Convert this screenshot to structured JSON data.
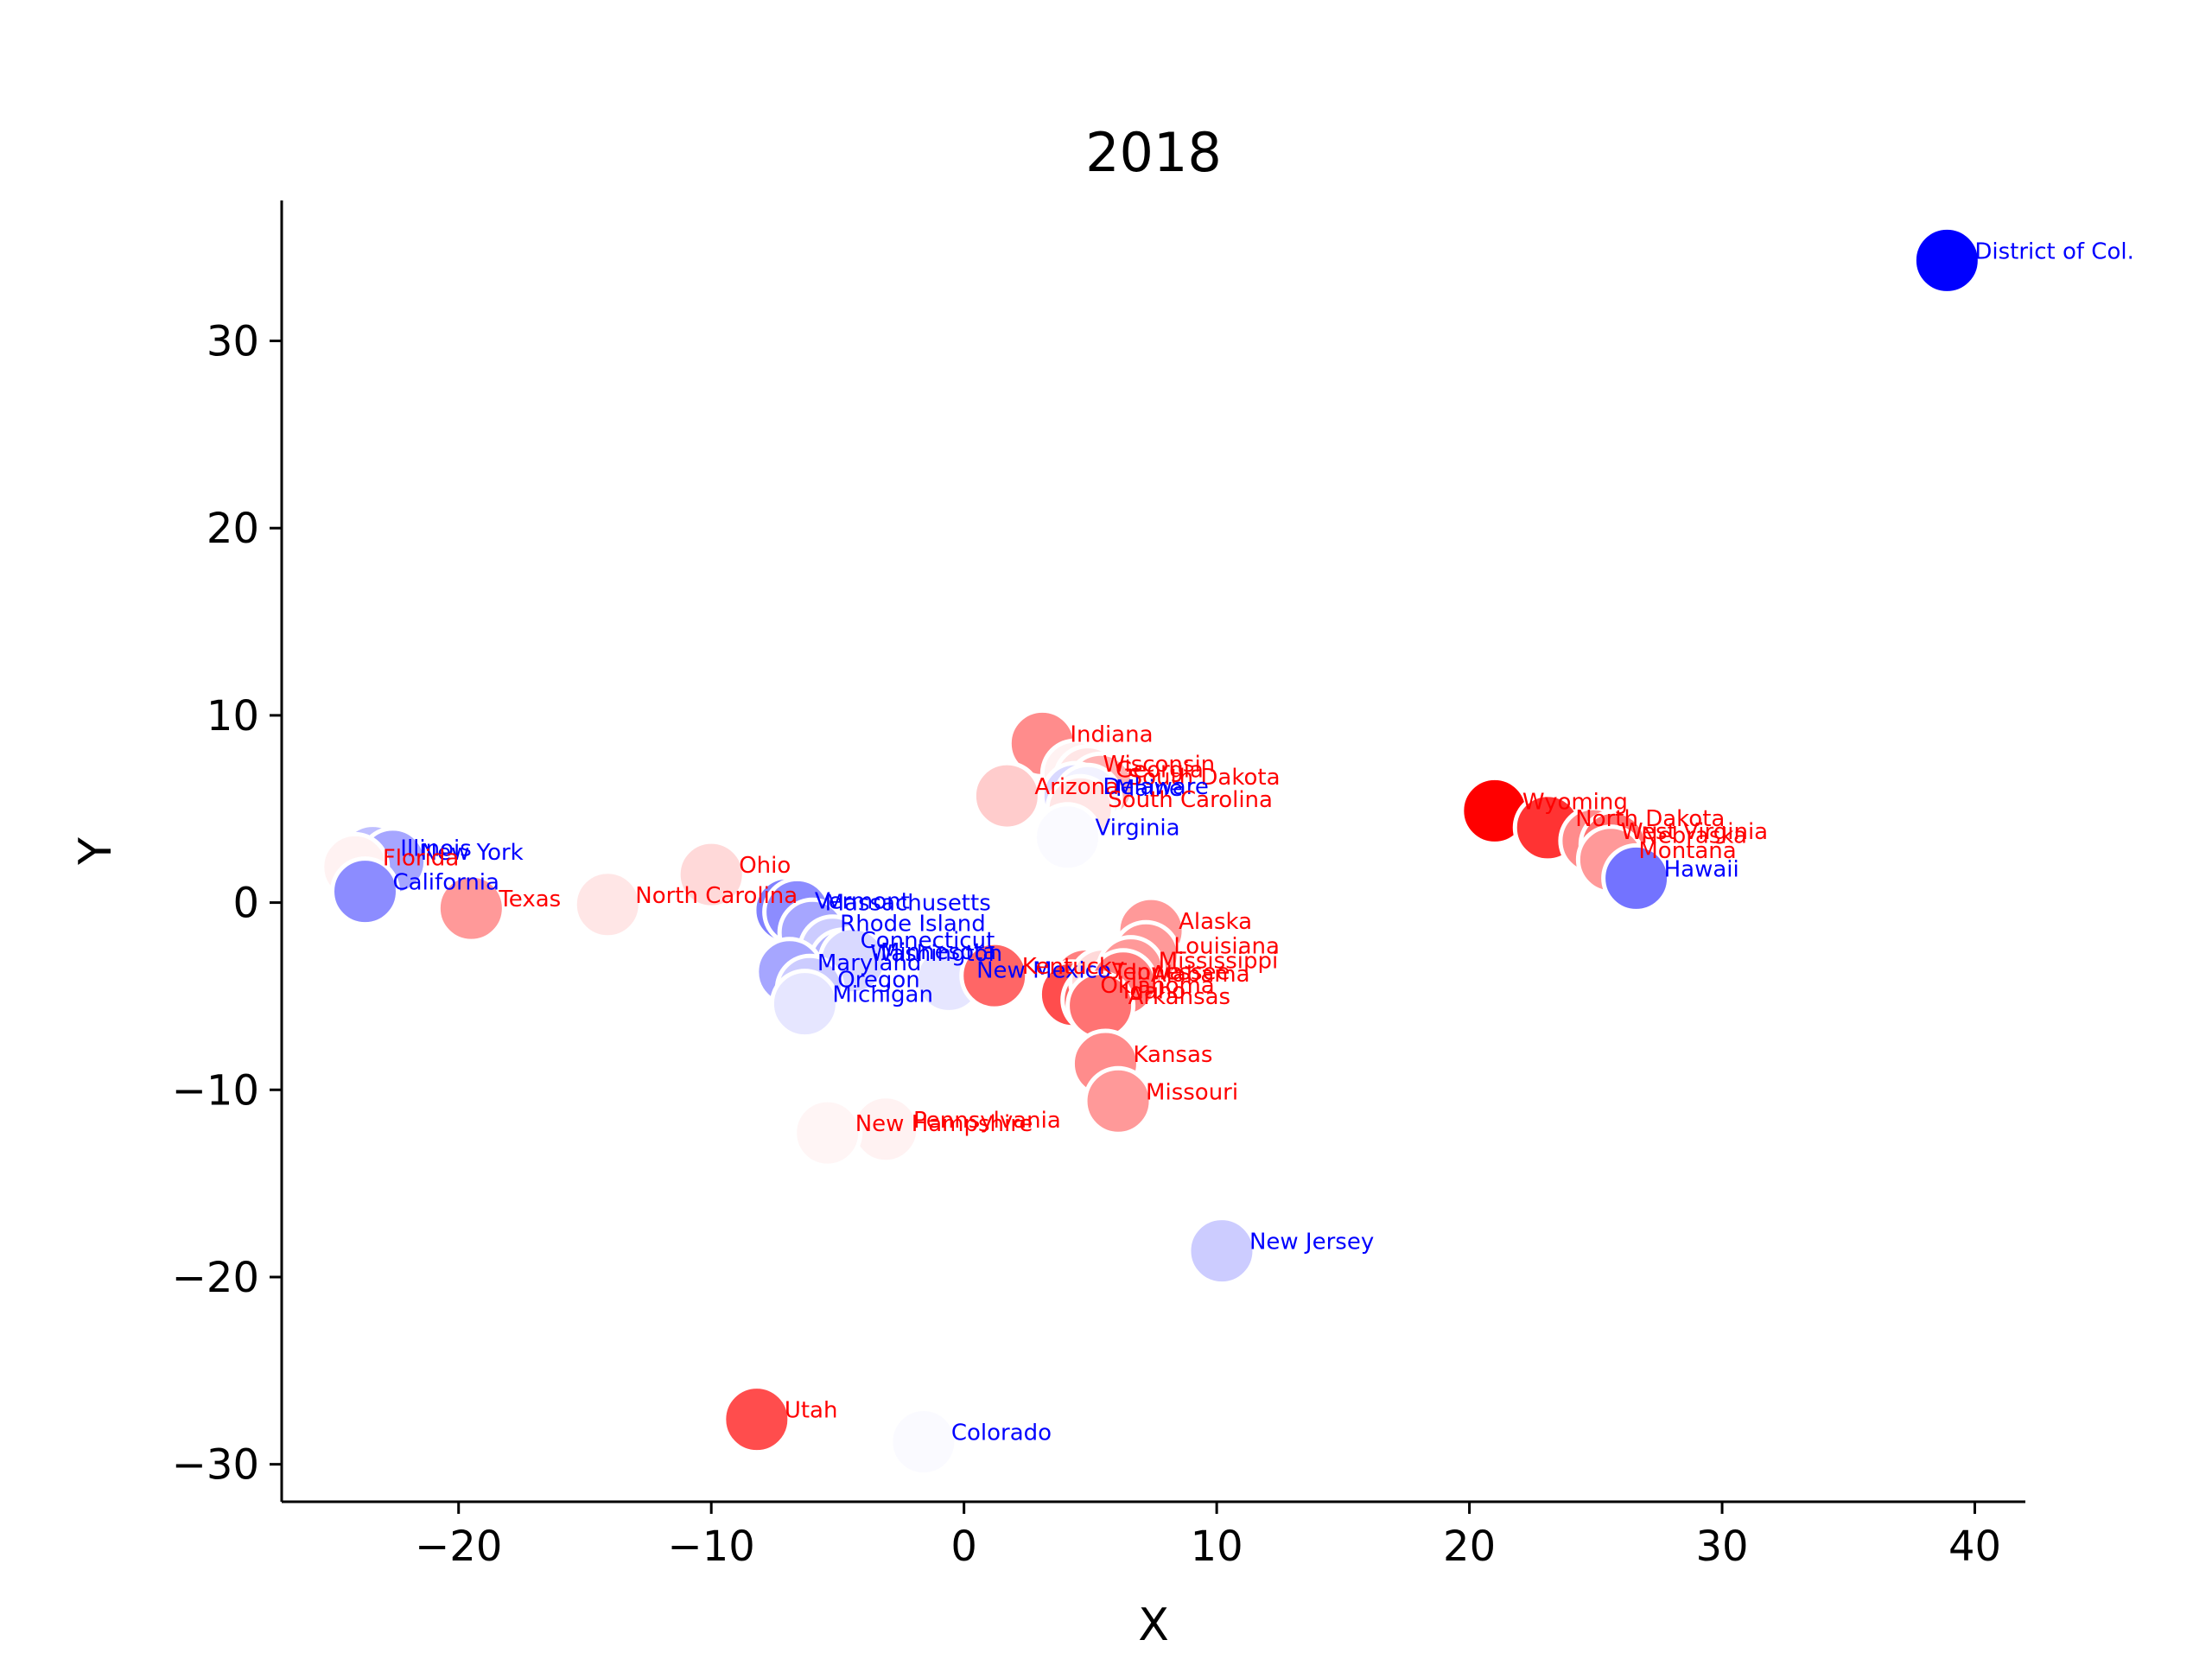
{
  "chart_data": {
    "type": "scatter",
    "title": "2018",
    "xlabel": "X",
    "ylabel": "Y",
    "xlim": [
      -27,
      42
    ],
    "ylim": [
      -32,
      37.5
    ],
    "xticks": [
      -20,
      -10,
      0,
      10,
      20,
      30,
      40
    ],
    "yticks": [
      -30,
      -20,
      -10,
      0,
      10,
      20,
      30
    ],
    "xtick_labels": [
      "−20",
      "−10",
      "0",
      "10",
      "20",
      "30",
      "40"
    ],
    "ytick_labels": [
      "−30",
      "−20",
      "−10",
      "0",
      "10",
      "20",
      "30"
    ],
    "grid": false,
    "legend": "none",
    "colors": {
      "blue": "#0000ff",
      "red": "#ff0000",
      "white": "#ffffff"
    },
    "points": [
      {
        "label": "District of Col.",
        "x": 38.9,
        "y": 34.3,
        "party": "D",
        "intensity": 1.0
      },
      {
        "label": "Indiana",
        "x": 3.1,
        "y": 8.5,
        "party": "R",
        "intensity": 0.45
      },
      {
        "label": "Arizona",
        "x": 1.7,
        "y": 5.7,
        "party": "R",
        "intensity": 0.2
      },
      {
        "label": "Wisconsin",
        "x": 4.4,
        "y": 6.9,
        "party": "R",
        "intensity": 0.05
      },
      {
        "label": "Georgia",
        "x": 4.9,
        "y": 6.6,
        "party": "R",
        "intensity": 0.1
      },
      {
        "label": "South Dakota",
        "x": 5.4,
        "y": 6.2,
        "party": "R",
        "intensity": 0.3
      },
      {
        "label": "Delaware",
        "x": 4.4,
        "y": 5.7,
        "party": "D",
        "intensity": 0.15
      },
      {
        "label": "Maine",
        "x": 4.9,
        "y": 5.6,
        "party": "D",
        "intensity": 0.05
      },
      {
        "label": "South Carolina",
        "x": 4.6,
        "y": 5.0,
        "party": "R",
        "intensity": 0.1
      },
      {
        "label": "Virginia",
        "x": 4.1,
        "y": 3.5,
        "party": "D",
        "intensity": 0.02
      },
      {
        "label": "Wyoming",
        "x": 21.0,
        "y": 4.9,
        "party": "R",
        "intensity": 1.0
      },
      {
        "label": "North Dakota",
        "x": 23.1,
        "y": 4.0,
        "party": "R",
        "intensity": 0.8
      },
      {
        "label": "West Virginia",
        "x": 24.9,
        "y": 3.3,
        "party": "R",
        "intensity": 0.45
      },
      {
        "label": "Nebraska",
        "x": 25.7,
        "y": 3.1,
        "party": "R",
        "intensity": 0.55
      },
      {
        "label": "Montana",
        "x": 25.6,
        "y": 2.3,
        "party": "R",
        "intensity": 0.4
      },
      {
        "label": "Hawaii",
        "x": 26.6,
        "y": 1.3,
        "party": "D",
        "intensity": 0.55
      },
      {
        "label": "Illinois",
        "x": -23.4,
        "y": 2.4,
        "party": "D",
        "intensity": 0.25
      },
      {
        "label": "New York",
        "x": -22.6,
        "y": 2.2,
        "party": "D",
        "intensity": 0.35
      },
      {
        "label": "Florida",
        "x": -24.1,
        "y": 1.9,
        "party": "R",
        "intensity": 0.05
      },
      {
        "label": "California",
        "x": -23.7,
        "y": 0.6,
        "party": "D",
        "intensity": 0.45
      },
      {
        "label": "Texas",
        "x": -19.5,
        "y": -0.3,
        "party": "R",
        "intensity": 0.4
      },
      {
        "label": "Ohio",
        "x": -10.0,
        "y": 1.5,
        "party": "R",
        "intensity": 0.15
      },
      {
        "label": "North Carolina",
        "x": -14.1,
        "y": -0.1,
        "party": "R",
        "intensity": 0.1
      },
      {
        "label": "Vermont",
        "x": -7.0,
        "y": -0.4,
        "party": "D",
        "intensity": 0.5
      },
      {
        "label": "Massachusetts",
        "x": -6.6,
        "y": -0.5,
        "party": "D",
        "intensity": 0.45
      },
      {
        "label": "Rhode Island",
        "x": -6.0,
        "y": -1.6,
        "party": "D",
        "intensity": 0.35
      },
      {
        "label": "Connecticut",
        "x": -5.2,
        "y": -2.5,
        "party": "D",
        "intensity": 0.2
      },
      {
        "label": "Washington",
        "x": -4.8,
        "y": -3.2,
        "party": "D",
        "intensity": 0.3
      },
      {
        "label": "Minnesota",
        "x": -4.4,
        "y": -3.1,
        "party": "D",
        "intensity": 0.15
      },
      {
        "label": "Maryland",
        "x": -6.9,
        "y": -3.7,
        "party": "D",
        "intensity": 0.35
      },
      {
        "label": "Oregon",
        "x": -6.1,
        "y": -4.6,
        "party": "D",
        "intensity": 0.2
      },
      {
        "label": "Michigan",
        "x": -6.3,
        "y": -5.4,
        "party": "D",
        "intensity": 0.1
      },
      {
        "label": "New Mexico",
        "x": -0.6,
        "y": -4.1,
        "party": "D",
        "intensity": 0.1
      },
      {
        "label": "Kentucky",
        "x": 1.2,
        "y": -3.9,
        "party": "R",
        "intensity": 0.6
      },
      {
        "label": "Tennessee",
        "x": 4.8,
        "y": -4.2,
        "party": "R",
        "intensity": 0.5
      },
      {
        "label": "Oklahoma",
        "x": 4.3,
        "y": -4.9,
        "party": "R",
        "intensity": 0.7
      },
      {
        "label": "Idaho",
        "x": 5.2,
        "y": -5.2,
        "party": "R",
        "intensity": 0.6
      },
      {
        "label": "Iowa",
        "x": 5.5,
        "y": -4.2,
        "party": "R",
        "intensity": 0.15
      },
      {
        "label": "Alaska",
        "x": 7.4,
        "y": -1.5,
        "party": "R",
        "intensity": 0.4
      },
      {
        "label": "Louisiana",
        "x": 7.2,
        "y": -2.8,
        "party": "R",
        "intensity": 0.4
      },
      {
        "label": "Mississippi",
        "x": 6.6,
        "y": -3.6,
        "party": "R",
        "intensity": 0.4
      },
      {
        "label": "Alabama",
        "x": 6.3,
        "y": -4.3,
        "party": "R",
        "intensity": 0.5
      },
      {
        "label": "Arkansas",
        "x": 5.4,
        "y": -5.5,
        "party": "R",
        "intensity": 0.55
      },
      {
        "label": "Kansas",
        "x": 5.6,
        "y": -8.6,
        "party": "R",
        "intensity": 0.45
      },
      {
        "label": "Missouri",
        "x": 6.1,
        "y": -10.6,
        "party": "R",
        "intensity": 0.4
      },
      {
        "label": "Pennsylvania",
        "x": -3.1,
        "y": -12.1,
        "party": "R",
        "intensity": 0.05
      },
      {
        "label": "New Hampshire",
        "x": -5.4,
        "y": -12.3,
        "party": "R",
        "intensity": 0.04
      },
      {
        "label": "New Jersey",
        "x": 10.2,
        "y": -18.6,
        "party": "D",
        "intensity": 0.2
      },
      {
        "label": "Utah",
        "x": -8.2,
        "y": -27.6,
        "party": "R",
        "intensity": 0.7
      },
      {
        "label": "Colorado",
        "x": -1.6,
        "y": -28.8,
        "party": "D",
        "intensity": 0.02
      }
    ]
  }
}
